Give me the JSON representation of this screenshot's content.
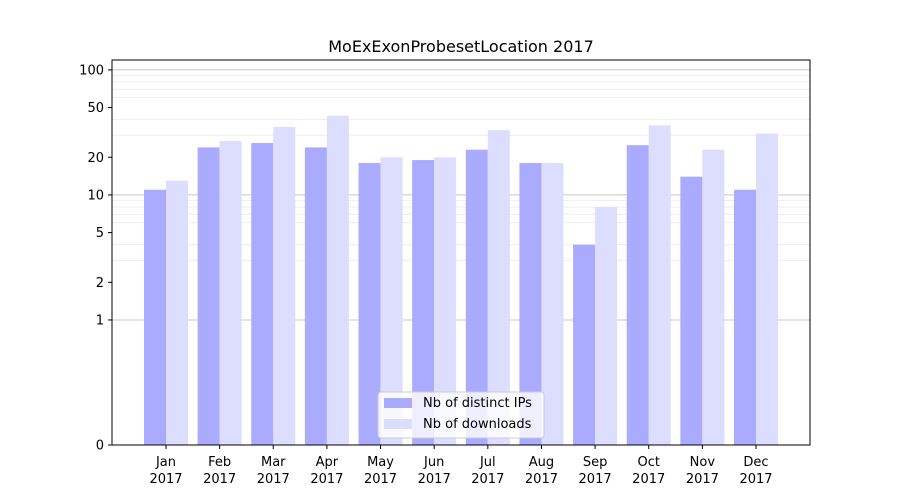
{
  "chart_data": {
    "type": "bar",
    "title": "MoExExonProbesetLocation 2017",
    "xlabel": "",
    "ylabel": "",
    "y_scale": "symlog",
    "ylim": [
      0,
      120
    ],
    "yticks": [
      0,
      1,
      2,
      5,
      10,
      20,
      50,
      100
    ],
    "ytick_labels": [
      "0",
      "1",
      "2",
      "5",
      "10",
      "20",
      "50",
      "100"
    ],
    "categories": [
      [
        "Jan",
        "2017"
      ],
      [
        "Feb",
        "2017"
      ],
      [
        "Mar",
        "2017"
      ],
      [
        "Apr",
        "2017"
      ],
      [
        "May",
        "2017"
      ],
      [
        "Jun",
        "2017"
      ],
      [
        "Jul",
        "2017"
      ],
      [
        "Aug",
        "2017"
      ],
      [
        "Sep",
        "2017"
      ],
      [
        "Oct",
        "2017"
      ],
      [
        "Nov",
        "2017"
      ],
      [
        "Dec",
        "2017"
      ]
    ],
    "series": [
      {
        "name": "Nb of distinct IPs",
        "color": "#aaaaff",
        "values": [
          11,
          24,
          26,
          24,
          18,
          19,
          23,
          18,
          4,
          25,
          14,
          11
        ]
      },
      {
        "name": "Nb of downloads",
        "color": "#ddddff",
        "values": [
          13,
          27,
          35,
          43,
          20,
          20,
          33,
          18,
          8,
          36,
          23,
          31
        ]
      }
    ],
    "grid": true,
    "legend_position": "bottom-center"
  }
}
